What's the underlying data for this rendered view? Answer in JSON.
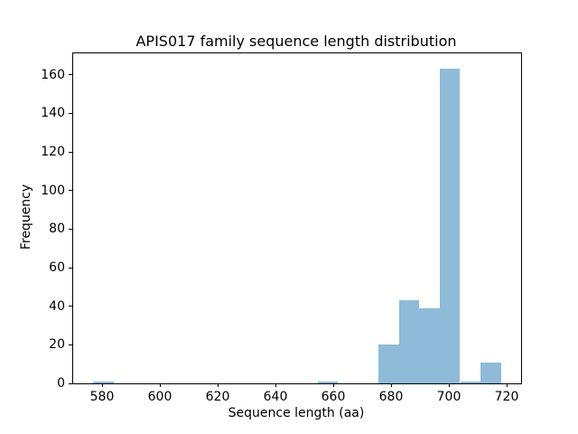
{
  "figure": {
    "background_color": "#ffffff",
    "text_color": "#000000"
  },
  "chart_data": {
    "type": "bar",
    "subtype": "histogram",
    "title": "APIS017 family sequence length distribution",
    "xlabel": "Sequence length (aa)",
    "ylabel": "Frequency",
    "xlim": [
      570,
      725
    ],
    "ylim": [
      0,
      171.15
    ],
    "x_ticks": [
      580,
      600,
      620,
      640,
      660,
      680,
      700,
      720
    ],
    "y_ticks": [
      0,
      20,
      40,
      60,
      80,
      100,
      120,
      140,
      160
    ],
    "grid": false,
    "legend": false,
    "bar_color": "#8fbbd9",
    "bar_edge_color": "none",
    "bin_edges": [
      577.0,
      584.1,
      591.1,
      598.2,
      605.2,
      612.3,
      619.3,
      626.4,
      633.4,
      640.5,
      647.5,
      654.6,
      661.6,
      668.7,
      675.7,
      682.8,
      689.8,
      696.9,
      703.9,
      711.0,
      718.0
    ],
    "counts": [
      1,
      0,
      0,
      0,
      0,
      0,
      0,
      0,
      0,
      0,
      0,
      1,
      0,
      0,
      20,
      43,
      39,
      163,
      1,
      11
    ]
  }
}
